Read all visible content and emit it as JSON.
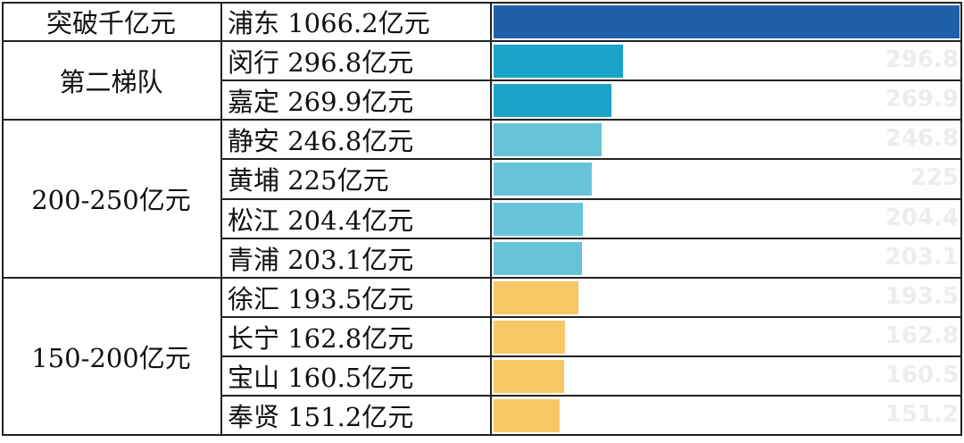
{
  "chart_data": {
    "type": "bar",
    "orientation": "horizontal",
    "unit": "亿元",
    "groups": [
      {
        "label": "突破千亿元",
        "items": [
          {
            "name": "浦东",
            "label": "浦东 1066.2亿元",
            "value": 1066.2,
            "color": "#1f5fa9",
            "value_label": ""
          }
        ]
      },
      {
        "label": "第二梯队",
        "items": [
          {
            "name": "闵行",
            "label": "闵行 296.8亿元",
            "value": 296.8,
            "color": "#1aa3c6",
            "value_label": "296.8"
          },
          {
            "name": "嘉定",
            "label": "嘉定 269.9亿元",
            "value": 269.9,
            "color": "#1aa3c6",
            "value_label": "269.9"
          }
        ]
      },
      {
        "label": "200-250亿元",
        "items": [
          {
            "name": "静安",
            "label": "静安 246.8亿元",
            "value": 246.8,
            "color": "#67c4d8",
            "value_label": "246.8"
          },
          {
            "name": "黄埔",
            "label": "黄埔 225亿元",
            "value": 225,
            "color": "#67c4d8",
            "value_label": "225"
          },
          {
            "name": "松江",
            "label": "松江 204.4亿元",
            "value": 204.4,
            "color": "#67c4d8",
            "value_label": "204.4"
          },
          {
            "name": "青浦",
            "label": "青浦 203.1亿元",
            "value": 203.1,
            "color": "#67c4d8",
            "value_label": "203.1"
          }
        ]
      },
      {
        "label": "150-200亿元",
        "items": [
          {
            "name": "徐汇",
            "label": "徐汇 193.5亿元",
            "value": 193.5,
            "color": "#f7c766",
            "value_label": "193.5"
          },
          {
            "name": "长宁",
            "label": "长宁 162.8亿元",
            "value": 162.8,
            "color": "#f7c766",
            "value_label": "162.8"
          },
          {
            "name": "宝山",
            "label": "宝山 160.5亿元",
            "value": 160.5,
            "color": "#f7c766",
            "value_label": "160.5"
          },
          {
            "name": "奉贤",
            "label": "奉贤 151.2亿元",
            "value": 151.2,
            "color": "#f7c766",
            "value_label": "151.2"
          }
        ]
      }
    ],
    "xlim": [
      0,
      1066.2
    ]
  }
}
